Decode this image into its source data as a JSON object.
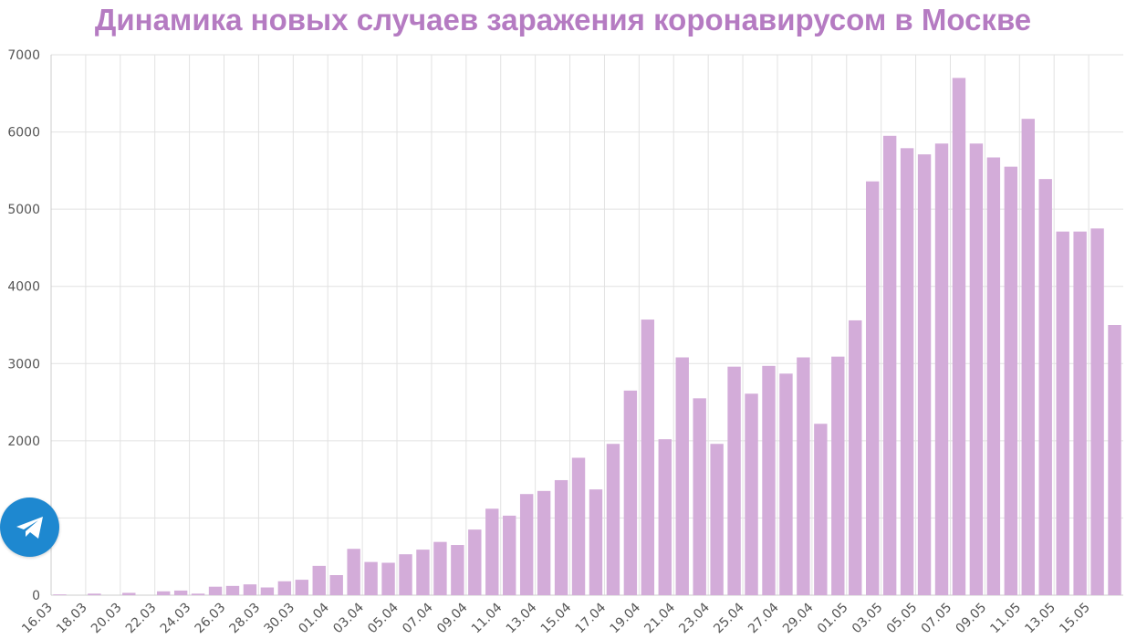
{
  "chart_data": {
    "type": "bar",
    "title": "Динамика новых случаев заражения коронавирусом в Москве",
    "xlabel": "",
    "ylabel": "",
    "ylim": [
      0,
      7000
    ],
    "yticks": [
      "0",
      "1000",
      "2000",
      "3000",
      "4000",
      "5000",
      "6000",
      "7000"
    ],
    "grid": true,
    "legend": "none",
    "bar_color": "#d3acd9",
    "title_color": "#b57bc2",
    "categories": [
      "16.03",
      "17.03",
      "18.03",
      "19.03",
      "20.03",
      "21.03",
      "22.03",
      "23.03",
      "24.03",
      "25.03",
      "26.03",
      "27.03",
      "28.03",
      "29.03",
      "30.03",
      "31.03",
      "01.04",
      "02.04",
      "03.04",
      "04.04",
      "05.04",
      "06.04",
      "07.04",
      "08.04",
      "09.04",
      "10.04",
      "11.04",
      "12.04",
      "13.04",
      "14.04",
      "15.04",
      "16.04",
      "17.04",
      "18.04",
      "19.04",
      "20.04",
      "21.04",
      "22.04",
      "23.04",
      "24.04",
      "25.04",
      "26.04",
      "27.04",
      "28.04",
      "29.04",
      "30.04",
      "01.05",
      "02.05",
      "03.05",
      "04.05",
      "05.05",
      "06.05",
      "07.05",
      "08.05",
      "09.05",
      "10.05",
      "11.05",
      "12.05",
      "13.05",
      "14.05",
      "15.05",
      "16.05"
    ],
    "xtick_labels": [
      "16.03",
      "18.03",
      "20.03",
      "22.03",
      "24.03",
      "26.03",
      "28.03",
      "30.03",
      "01.04",
      "03.04",
      "05.04",
      "07.04",
      "09.04",
      "11.04",
      "13.04",
      "15.04",
      "17.04",
      "19.04",
      "21.04",
      "23.04",
      "25.04",
      "27.04",
      "29.04",
      "01.05",
      "03.05",
      "05.05",
      "07.05",
      "09.05",
      "11.05",
      "13.05",
      "15.05"
    ],
    "values": [
      10,
      0,
      20,
      0,
      30,
      0,
      50,
      60,
      20,
      110,
      120,
      140,
      100,
      180,
      200,
      380,
      260,
      600,
      430,
      420,
      530,
      590,
      690,
      650,
      850,
      1120,
      1030,
      1310,
      1350,
      1490,
      1780,
      1370,
      1960,
      2650,
      3570,
      2020,
      3080,
      2550,
      1960,
      2960,
      2610,
      2970,
      2870,
      3080,
      2220,
      3090,
      3560,
      5360,
      5950,
      5790,
      5710,
      5850,
      6700,
      5850,
      5670,
      5550,
      6170,
      5390,
      4710,
      4710,
      4750,
      3500
    ]
  },
  "telegram": {
    "icon": "telegram-icon",
    "color": "#1e88d0"
  }
}
